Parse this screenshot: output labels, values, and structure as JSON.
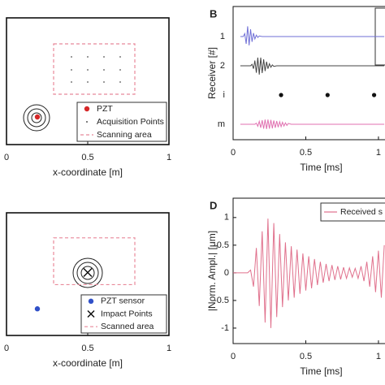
{
  "chart_data": [
    {
      "type": "scatter",
      "xlabel": "x-coordinate [m]",
      "xlim": [
        0,
        1
      ],
      "ylim": [
        0,
        0.78
      ],
      "xticks": [
        0,
        0.5,
        1
      ],
      "legend": "lower right",
      "series": [
        {
          "name": "PZT",
          "color": "#d62728",
          "kind": "dot",
          "x": [
            0.19
          ],
          "y": [
            0.17
          ]
        },
        {
          "name": "Acquisition Points",
          "color": "#555555",
          "kind": "point",
          "x": [
            0.4,
            0.5,
            0.6,
            0.7,
            0.4,
            0.5,
            0.6,
            0.7,
            0.4,
            0.5,
            0.6,
            0.7
          ],
          "y": [
            0.54,
            0.54,
            0.54,
            0.54,
            0.46,
            0.46,
            0.46,
            0.46,
            0.385,
            0.385,
            0.385,
            0.385
          ]
        },
        {
          "name": "Scanning area",
          "color": "#e8899a",
          "kind": "rect",
          "x": [
            0.29,
            0.79
          ],
          "y": [
            0.31,
            0.62
          ]
        }
      ]
    },
    {
      "type": "line",
      "label": "B",
      "xlabel": "Time [ms]",
      "ylabel": "Receiver [#]",
      "xlim": [
        0,
        1.045
      ],
      "xticks": [
        0,
        0.5,
        1
      ],
      "categories": [
        "1",
        "2",
        "i",
        "m"
      ],
      "series": [
        {
          "color": "#6f6fd6",
          "kind": "line",
          "x": [
            0.05,
            0.07,
            0.08,
            0.09,
            0.1,
            0.11,
            0.12,
            0.13,
            0.14,
            0.15,
            0.16,
            0.17,
            0.18,
            0.2,
            1.04
          ],
          "values": [
            0,
            0,
            0.1,
            -0.25,
            0.35,
            -0.3,
            0.25,
            -0.18,
            0.12,
            -0.08,
            0.05,
            -0.03,
            0.02,
            0,
            0
          ]
        },
        {
          "color": "#444444",
          "kind": "line",
          "x": [
            0.05,
            0.12,
            0.13,
            0.14,
            0.15,
            0.16,
            0.17,
            0.18,
            0.19,
            0.2,
            0.21,
            0.22,
            0.23,
            0.24,
            0.25,
            0.26,
            0.27,
            0.28,
            0.3,
            1.04
          ],
          "values": [
            0,
            0,
            0.05,
            -0.1,
            0.18,
            -0.24,
            0.28,
            -0.3,
            0.28,
            -0.25,
            0.22,
            -0.18,
            0.14,
            -0.1,
            0.07,
            -0.05,
            0.03,
            -0.02,
            0,
            0
          ]
        },
        {
          "color": "#111111",
          "kind": "dot",
          "x": [
            0.33,
            0.65,
            0.97
          ],
          "values": [
            0,
            0,
            0
          ]
        },
        {
          "color": "#e070b0",
          "kind": "line",
          "x": [
            0.05,
            0.15,
            0.16,
            0.17,
            0.18,
            0.19,
            0.2,
            0.21,
            0.22,
            0.23,
            0.24,
            0.25,
            0.26,
            0.27,
            0.28,
            0.29,
            0.3,
            0.31,
            0.32,
            0.33,
            0.34,
            0.35,
            0.36,
            0.37,
            0.38,
            0.4,
            1.04
          ],
          "values": [
            0,
            0,
            0.04,
            -0.07,
            0.1,
            -0.12,
            0.14,
            -0.15,
            0.16,
            -0.16,
            0.16,
            -0.15,
            0.15,
            -0.14,
            0.13,
            -0.12,
            0.11,
            -0.1,
            0.09,
            -0.08,
            0.07,
            -0.06,
            0.05,
            -0.04,
            0.03,
            0,
            0
          ]
        }
      ]
    },
    {
      "type": "scatter",
      "xlabel": "x-coordinate [m]",
      "xlim": [
        0,
        1
      ],
      "ylim": [
        0,
        0.76
      ],
      "xticks": [
        0,
        0.5,
        1
      ],
      "legend": "lower right",
      "series": [
        {
          "name": "PZT sensor",
          "color": "#3050c8",
          "kind": "dot",
          "x": [
            0.19
          ],
          "y": [
            0.165
          ]
        },
        {
          "name": "Impact Points",
          "color": "#111111",
          "kind": "cross",
          "x": [
            0.5
          ],
          "y": [
            0.39
          ]
        },
        {
          "name": "Scanned area",
          "color": "#e8899a",
          "kind": "rect",
          "x": [
            0.29,
            0.79
          ],
          "y": [
            0.315,
            0.605
          ]
        }
      ]
    },
    {
      "type": "line",
      "label": "D",
      "xlabel": "Time [ms]",
      "ylabel": "|Norm. Ampl.| [μm]",
      "xlim": [
        0,
        1.045
      ],
      "ylim": [
        -1.28,
        1.35
      ],
      "xticks": [
        0,
        0.5,
        1
      ],
      "yticks": [
        -1,
        -0.5,
        0,
        0.5,
        1
      ],
      "legend": "upper right",
      "series": [
        {
          "name": "Received s",
          "color": "#e0708c",
          "kind": "line",
          "x": [
            0,
            0.1,
            0.12,
            0.14,
            0.16,
            0.18,
            0.2,
            0.22,
            0.24,
            0.26,
            0.28,
            0.3,
            0.32,
            0.34,
            0.36,
            0.38,
            0.4,
            0.42,
            0.44,
            0.46,
            0.48,
            0.5,
            0.52,
            0.54,
            0.56,
            0.58,
            0.6,
            0.62,
            0.64,
            0.66,
            0.68,
            0.7,
            0.72,
            0.74,
            0.76,
            0.78,
            0.8,
            0.82,
            0.84,
            0.86,
            0.88,
            0.9,
            0.92,
            0.94,
            0.96,
            0.98,
            1,
            1.02,
            1.04
          ],
          "values": [
            0,
            0,
            0.05,
            -0.25,
            0.45,
            -0.6,
            0.75,
            -0.9,
            0.98,
            -1,
            0.9,
            -0.8,
            0.7,
            -0.62,
            0.55,
            -0.5,
            0.48,
            -0.45,
            0.42,
            -0.38,
            0.35,
            -0.32,
            0.3,
            -0.28,
            0.25,
            -0.22,
            0.2,
            -0.18,
            0.16,
            -0.15,
            0.14,
            -0.13,
            0.12,
            -0.12,
            0.1,
            -0.1,
            0.09,
            -0.08,
            0.08,
            -0.1,
            0.12,
            -0.15,
            0.2,
            -0.25,
            0.3,
            -0.35,
            0.4,
            -0.45,
            0.5
          ]
        }
      ]
    }
  ]
}
